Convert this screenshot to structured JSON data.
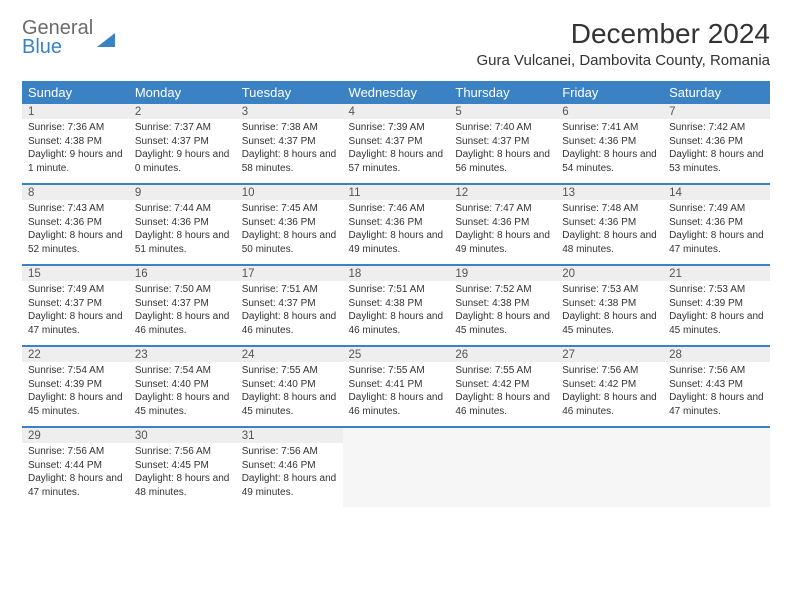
{
  "brand": {
    "line1": "General",
    "line2": "Blue"
  },
  "title": "December 2024",
  "location": "Gura Vulcanei, Dambovita County, Romania",
  "colors": {
    "header_bg": "#3b82c4",
    "header_text": "#ffffff",
    "daynum_bg": "#eeeeee",
    "text": "#333333",
    "background": "#ffffff"
  },
  "typography": {
    "title_fontsize": 28,
    "location_fontsize": 15,
    "header_fontsize": 13,
    "daynum_fontsize": 11.5,
    "body_fontsize": 10
  },
  "day_headers": [
    "Sunday",
    "Monday",
    "Tuesday",
    "Wednesday",
    "Thursday",
    "Friday",
    "Saturday"
  ],
  "weeks": [
    [
      {
        "n": "1",
        "sr": "Sunrise: 7:36 AM",
        "ss": "Sunset: 4:38 PM",
        "dl": "Daylight: 9 hours and 1 minute."
      },
      {
        "n": "2",
        "sr": "Sunrise: 7:37 AM",
        "ss": "Sunset: 4:37 PM",
        "dl": "Daylight: 9 hours and 0 minutes."
      },
      {
        "n": "3",
        "sr": "Sunrise: 7:38 AM",
        "ss": "Sunset: 4:37 PM",
        "dl": "Daylight: 8 hours and 58 minutes."
      },
      {
        "n": "4",
        "sr": "Sunrise: 7:39 AM",
        "ss": "Sunset: 4:37 PM",
        "dl": "Daylight: 8 hours and 57 minutes."
      },
      {
        "n": "5",
        "sr": "Sunrise: 7:40 AM",
        "ss": "Sunset: 4:37 PM",
        "dl": "Daylight: 8 hours and 56 minutes."
      },
      {
        "n": "6",
        "sr": "Sunrise: 7:41 AM",
        "ss": "Sunset: 4:36 PM",
        "dl": "Daylight: 8 hours and 54 minutes."
      },
      {
        "n": "7",
        "sr": "Sunrise: 7:42 AM",
        "ss": "Sunset: 4:36 PM",
        "dl": "Daylight: 8 hours and 53 minutes."
      }
    ],
    [
      {
        "n": "8",
        "sr": "Sunrise: 7:43 AM",
        "ss": "Sunset: 4:36 PM",
        "dl": "Daylight: 8 hours and 52 minutes."
      },
      {
        "n": "9",
        "sr": "Sunrise: 7:44 AM",
        "ss": "Sunset: 4:36 PM",
        "dl": "Daylight: 8 hours and 51 minutes."
      },
      {
        "n": "10",
        "sr": "Sunrise: 7:45 AM",
        "ss": "Sunset: 4:36 PM",
        "dl": "Daylight: 8 hours and 50 minutes."
      },
      {
        "n": "11",
        "sr": "Sunrise: 7:46 AM",
        "ss": "Sunset: 4:36 PM",
        "dl": "Daylight: 8 hours and 49 minutes."
      },
      {
        "n": "12",
        "sr": "Sunrise: 7:47 AM",
        "ss": "Sunset: 4:36 PM",
        "dl": "Daylight: 8 hours and 49 minutes."
      },
      {
        "n": "13",
        "sr": "Sunrise: 7:48 AM",
        "ss": "Sunset: 4:36 PM",
        "dl": "Daylight: 8 hours and 48 minutes."
      },
      {
        "n": "14",
        "sr": "Sunrise: 7:49 AM",
        "ss": "Sunset: 4:36 PM",
        "dl": "Daylight: 8 hours and 47 minutes."
      }
    ],
    [
      {
        "n": "15",
        "sr": "Sunrise: 7:49 AM",
        "ss": "Sunset: 4:37 PM",
        "dl": "Daylight: 8 hours and 47 minutes."
      },
      {
        "n": "16",
        "sr": "Sunrise: 7:50 AM",
        "ss": "Sunset: 4:37 PM",
        "dl": "Daylight: 8 hours and 46 minutes."
      },
      {
        "n": "17",
        "sr": "Sunrise: 7:51 AM",
        "ss": "Sunset: 4:37 PM",
        "dl": "Daylight: 8 hours and 46 minutes."
      },
      {
        "n": "18",
        "sr": "Sunrise: 7:51 AM",
        "ss": "Sunset: 4:38 PM",
        "dl": "Daylight: 8 hours and 46 minutes."
      },
      {
        "n": "19",
        "sr": "Sunrise: 7:52 AM",
        "ss": "Sunset: 4:38 PM",
        "dl": "Daylight: 8 hours and 45 minutes."
      },
      {
        "n": "20",
        "sr": "Sunrise: 7:53 AM",
        "ss": "Sunset: 4:38 PM",
        "dl": "Daylight: 8 hours and 45 minutes."
      },
      {
        "n": "21",
        "sr": "Sunrise: 7:53 AM",
        "ss": "Sunset: 4:39 PM",
        "dl": "Daylight: 8 hours and 45 minutes."
      }
    ],
    [
      {
        "n": "22",
        "sr": "Sunrise: 7:54 AM",
        "ss": "Sunset: 4:39 PM",
        "dl": "Daylight: 8 hours and 45 minutes."
      },
      {
        "n": "23",
        "sr": "Sunrise: 7:54 AM",
        "ss": "Sunset: 4:40 PM",
        "dl": "Daylight: 8 hours and 45 minutes."
      },
      {
        "n": "24",
        "sr": "Sunrise: 7:55 AM",
        "ss": "Sunset: 4:40 PM",
        "dl": "Daylight: 8 hours and 45 minutes."
      },
      {
        "n": "25",
        "sr": "Sunrise: 7:55 AM",
        "ss": "Sunset: 4:41 PM",
        "dl": "Daylight: 8 hours and 46 minutes."
      },
      {
        "n": "26",
        "sr": "Sunrise: 7:55 AM",
        "ss": "Sunset: 4:42 PM",
        "dl": "Daylight: 8 hours and 46 minutes."
      },
      {
        "n": "27",
        "sr": "Sunrise: 7:56 AM",
        "ss": "Sunset: 4:42 PM",
        "dl": "Daylight: 8 hours and 46 minutes."
      },
      {
        "n": "28",
        "sr": "Sunrise: 7:56 AM",
        "ss": "Sunset: 4:43 PM",
        "dl": "Daylight: 8 hours and 47 minutes."
      }
    ],
    [
      {
        "n": "29",
        "sr": "Sunrise: 7:56 AM",
        "ss": "Sunset: 4:44 PM",
        "dl": "Daylight: 8 hours and 47 minutes."
      },
      {
        "n": "30",
        "sr": "Sunrise: 7:56 AM",
        "ss": "Sunset: 4:45 PM",
        "dl": "Daylight: 8 hours and 48 minutes."
      },
      {
        "n": "31",
        "sr": "Sunrise: 7:56 AM",
        "ss": "Sunset: 4:46 PM",
        "dl": "Daylight: 8 hours and 49 minutes."
      },
      null,
      null,
      null,
      null
    ]
  ]
}
